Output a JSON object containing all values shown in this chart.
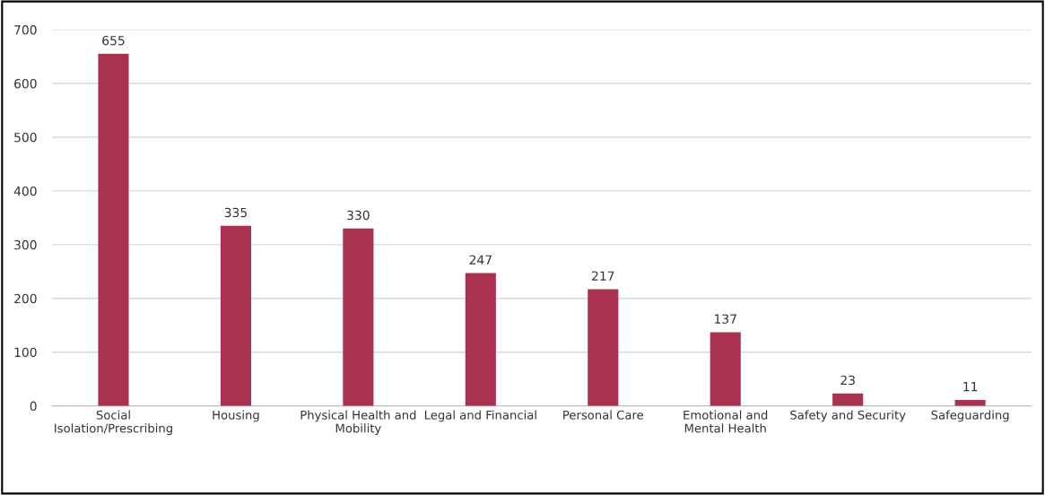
{
  "chart_data": {
    "type": "bar",
    "categories": [
      "Social\nIsolation/Prescribing",
      "Housing",
      "Physical Health and\nMobility",
      "Legal and Financial",
      "Personal Care",
      "Emotional and\nMental Health",
      "Safety and Security",
      "Safeguarding"
    ],
    "values": [
      655,
      335,
      330,
      247,
      217,
      137,
      23,
      11
    ],
    "color": "#a93250",
    "ylim": [
      0,
      700
    ],
    "yticks": [
      0,
      100,
      200,
      300,
      400,
      500,
      600,
      700
    ],
    "grid": "y",
    "data_labels": true,
    "legend": false
  }
}
